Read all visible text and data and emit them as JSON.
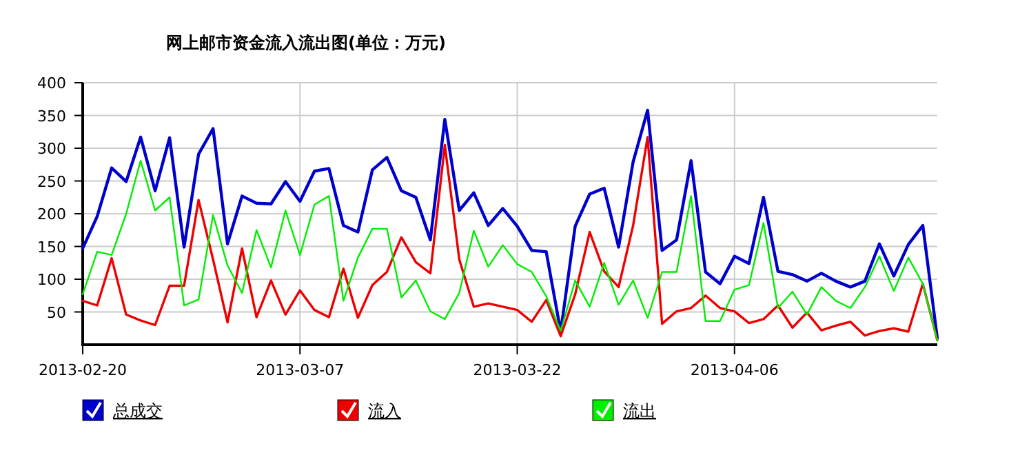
{
  "chart_data": {
    "type": "line",
    "title": "网上邮市资金流入流出图(单位：万元)",
    "x": [
      "2013-02-20",
      "2013-02-21",
      "2013-02-22",
      "2013-02-23",
      "2013-02-24",
      "2013-02-25",
      "2013-02-26",
      "2013-02-27",
      "2013-02-28",
      "2013-03-01",
      "2013-03-02",
      "2013-03-03",
      "2013-03-04",
      "2013-03-05",
      "2013-03-06",
      "2013-03-07",
      "2013-03-08",
      "2013-03-09",
      "2013-03-10",
      "2013-03-11",
      "2013-03-12",
      "2013-03-13",
      "2013-03-14",
      "2013-03-15",
      "2013-03-16",
      "2013-03-17",
      "2013-03-18",
      "2013-03-19",
      "2013-03-20",
      "2013-03-21",
      "2013-03-22",
      "2013-03-23",
      "2013-03-24",
      "2013-03-25",
      "2013-03-26",
      "2013-03-27",
      "2013-03-28",
      "2013-03-29",
      "2013-03-30",
      "2013-03-31",
      "2013-04-01",
      "2013-04-02",
      "2013-04-03",
      "2013-04-04",
      "2013-04-05",
      "2013-04-06",
      "2013-04-07",
      "2013-04-08",
      "2013-04-09",
      "2013-04-10",
      "2013-04-11",
      "2013-04-12",
      "2013-04-13",
      "2013-04-14",
      "2013-04-15",
      "2013-04-16",
      "2013-04-17",
      "2013-04-18",
      "2013-04-19",
      "2013-04-20"
    ],
    "series": [
      {
        "name": "总成交",
        "color": "#0000cc",
        "values": [
          147,
          196,
          270,
          249,
          317,
          235,
          316,
          149,
          291,
          330,
          154,
          227,
          216,
          215,
          249,
          219,
          265,
          269,
          182,
          172,
          267,
          286,
          235,
          225,
          160,
          344,
          205,
          232,
          182,
          208,
          181,
          144,
          142,
          20,
          181,
          230,
          239,
          149,
          279,
          358,
          144,
          160,
          281,
          111,
          93,
          135,
          124,
          225,
          112,
          107,
          97,
          109,
          97,
          88,
          97,
          154,
          105,
          153,
          182,
          10
        ]
      },
      {
        "name": "流入",
        "color": "#ee0000",
        "values": [
          67,
          60,
          132,
          46,
          37,
          30,
          90,
          90,
          221,
          130,
          34,
          147,
          42,
          98,
          46,
          83,
          53,
          42,
          116,
          41,
          91,
          111,
          164,
          126,
          109,
          305,
          130,
          58,
          63,
          58,
          53,
          35,
          68,
          13,
          77,
          172,
          112,
          88,
          182,
          317,
          32,
          51,
          56,
          75,
          56,
          51,
          33,
          39,
          60,
          26,
          49,
          22,
          29,
          35,
          14,
          21,
          25,
          20,
          93,
          7
        ]
      },
      {
        "name": "流出",
        "color": "#00ee00",
        "values": [
          77,
          142,
          137,
          200,
          281,
          205,
          225,
          60,
          69,
          198,
          121,
          79,
          175,
          118,
          205,
          137,
          214,
          227,
          67,
          133,
          177,
          177,
          72,
          98,
          51,
          39,
          79,
          174,
          119,
          152,
          123,
          111,
          74,
          21,
          98,
          58,
          125,
          61,
          98,
          41,
          111,
          111,
          227,
          36,
          36,
          84,
          91,
          186,
          56,
          81,
          46,
          88,
          67,
          56,
          88,
          135,
          82,
          133,
          93,
          6
        ]
      }
    ],
    "xlim": [
      "2013-02-20",
      "2013-04-20"
    ],
    "xticks": [
      "2013-02-20",
      "2013-03-07",
      "2013-03-22",
      "2013-04-06"
    ],
    "ylim": [
      0,
      400
    ],
    "yticks": [
      50,
      100,
      150,
      200,
      250,
      300,
      350,
      400
    ],
    "grid": true,
    "legend": "bottom",
    "marker": "none",
    "line_style": "solid"
  }
}
